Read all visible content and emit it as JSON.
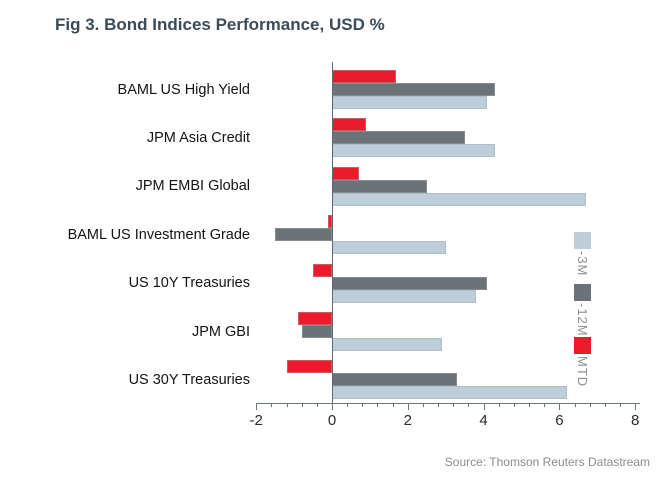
{
  "chart_data": {
    "type": "bar",
    "orientation": "horizontal",
    "title": "Fig 3. Bond Indices Performance, USD %",
    "categories": [
      "BAML US High Yield",
      "JPM Asia Credit",
      "JPM EMBI Global",
      "BAML US Investment Grade",
      "US 10Y Treasuries",
      "JPM GBI",
      "US 30Y Treasuries"
    ],
    "series": [
      {
        "name": "-3M",
        "color": "#BDCEDA",
        "values": [
          4.1,
          4.3,
          6.7,
          3.0,
          3.8,
          2.9,
          6.2
        ]
      },
      {
        "name": "-12M",
        "color": "#6C7377",
        "values": [
          4.3,
          3.5,
          2.5,
          -1.5,
          4.1,
          -0.8,
          3.3
        ]
      },
      {
        "name": "MTD",
        "color": "#EC1B2B",
        "values": [
          1.7,
          0.9,
          0.7,
          -0.1,
          -0.5,
          -0.9,
          -1.2
        ]
      }
    ],
    "xlim": [
      -2,
      8
    ],
    "x_ticks": [
      -2,
      0,
      2,
      4,
      6,
      8
    ],
    "minor_tick_step": 0.4,
    "grid": false,
    "legend_position": "right",
    "legend_order_top_to_bottom": [
      "-3M",
      "-12M",
      "MTD"
    ],
    "bar_order_top_to_bottom": [
      "MTD",
      "-12M",
      "-3M"
    ],
    "source": "Source: Thomson Reuters Datastream",
    "colors": {
      "title": "#3C4B58",
      "axis": "#6b757c",
      "category_text": "#141414",
      "legend_text": "#8a8f93",
      "source_text": "#8c8c8c"
    }
  }
}
